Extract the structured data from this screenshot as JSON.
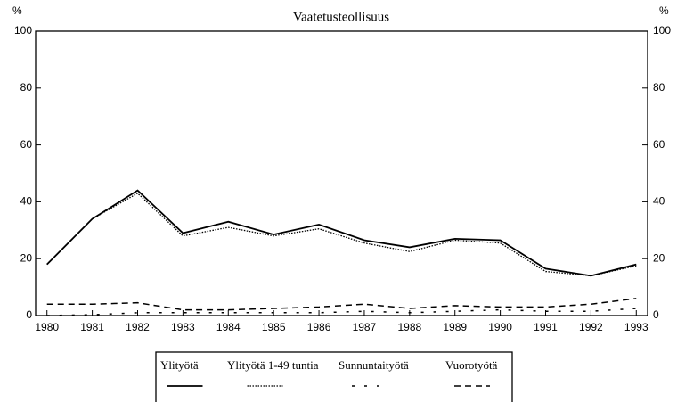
{
  "chart_data": {
    "type": "line",
    "title": "Vaatetusteollisuus",
    "ylabel": "%",
    "y2label": "%",
    "x": [
      1980,
      1981,
      1982,
      1983,
      1984,
      1985,
      1986,
      1987,
      1988,
      1989,
      1990,
      1991,
      1992,
      1993
    ],
    "xlim": [
      1979.75,
      1993.25
    ],
    "ylim": [
      0,
      100
    ],
    "yticks": [
      0,
      20,
      40,
      60,
      80,
      100
    ],
    "y2lim": [
      0,
      100
    ],
    "y2ticks": [
      0,
      20,
      40,
      60,
      80,
      100
    ],
    "series": [
      {
        "name": "Ylityötä",
        "color": "#000000",
        "dash": "none",
        "width": 1.8,
        "values": [
          18,
          34,
          44,
          29,
          33,
          28.5,
          32,
          26.5,
          24,
          27,
          26.5,
          16.5,
          14,
          18
        ]
      },
      {
        "name": "Ylityötä 1-49 tuntia",
        "color": "#000000",
        "dash": "1.5,1.5",
        "width": 1.3,
        "values": [
          18,
          34,
          43,
          28,
          31,
          28,
          30.5,
          25.5,
          22.5,
          26.5,
          25.5,
          15.5,
          14,
          17.5
        ]
      },
      {
        "name": "Sunnuntaityötä",
        "color": "#000000",
        "dash": "3,11",
        "width": 1.5,
        "values": [
          0,
          0.3,
          1,
          1,
          1,
          1,
          1,
          1.5,
          1,
          1.5,
          2,
          1.5,
          1.5,
          2.5
        ]
      },
      {
        "name": "Vuorotyötä",
        "color": "#000000",
        "dash": "7,5",
        "width": 1.5,
        "values": [
          4,
          4,
          4.5,
          2,
          2,
          2.5,
          3,
          4,
          2.5,
          3.5,
          3,
          3,
          4,
          6
        ]
      }
    ],
    "legend": "bottom"
  }
}
